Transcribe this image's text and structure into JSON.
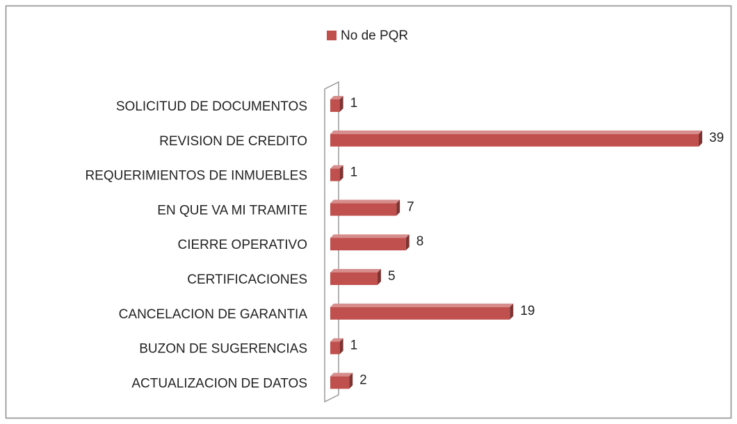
{
  "chart_data": {
    "type": "bar",
    "orientation": "horizontal",
    "legend": {
      "position": "top"
    },
    "series": [
      {
        "name": "No de PQR",
        "color": "#c0504d",
        "values": [
          1,
          39,
          1,
          7,
          8,
          5,
          19,
          1,
          2
        ]
      }
    ],
    "categories": [
      "SOLICITUD DE DOCUMENTOS",
      "REVISION DE CREDITO",
      "REQUERIMIENTOS DE INMUEBLES",
      "EN QUE VA MI TRAMITE",
      "CIERRE OPERATIVO",
      "CERTIFICACIONES",
      "CANCELACION DE GARANTIA",
      "BUZON DE SUGERENCIAS",
      "ACTUALIZACION DE DATOS"
    ]
  }
}
